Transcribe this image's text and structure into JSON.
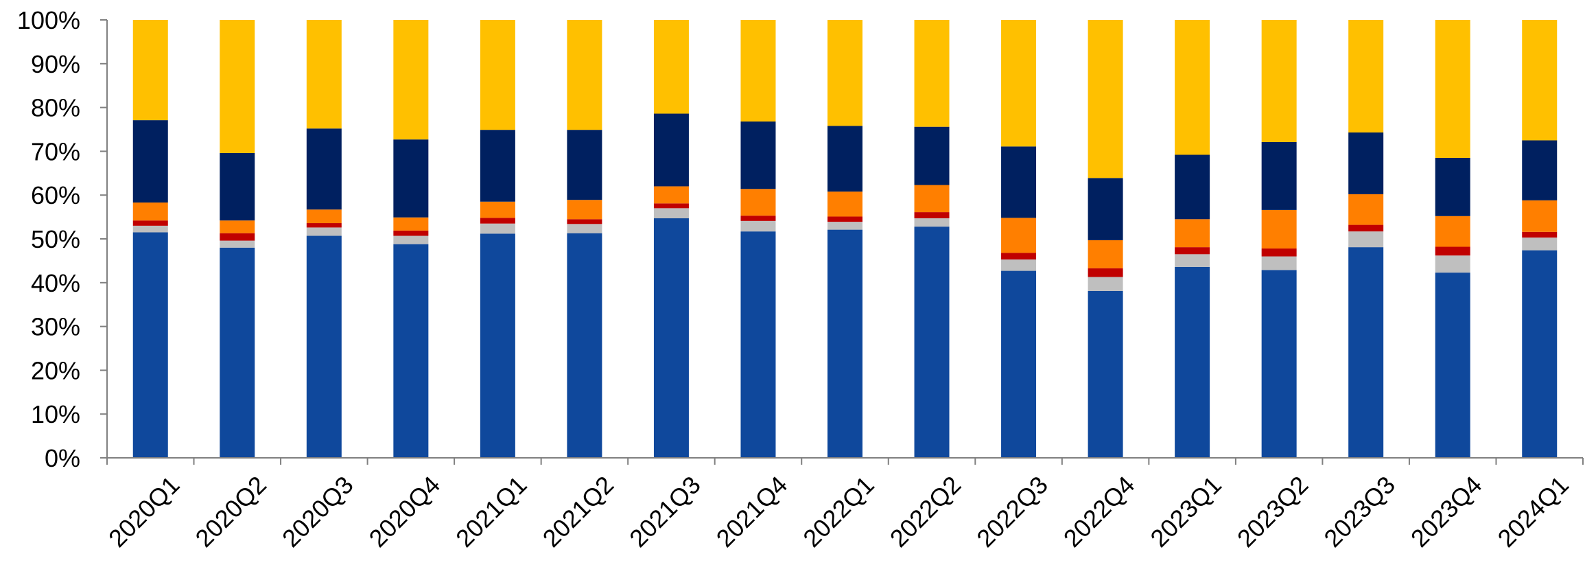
{
  "chart_data": {
    "type": "bar",
    "stacked": true,
    "percent": true,
    "title": "",
    "xlabel": "",
    "ylabel": "",
    "ylim": [
      0,
      100
    ],
    "yticks": [
      "0%",
      "10%",
      "20%",
      "30%",
      "40%",
      "50%",
      "60%",
      "70%",
      "80%",
      "90%",
      "100%"
    ],
    "grid": false,
    "legend": "none",
    "categories": [
      "2020Q1",
      "2020Q2",
      "2020Q3",
      "2020Q4",
      "2021Q1",
      "2021Q2",
      "2021Q3",
      "2021Q4",
      "2022Q1",
      "2022Q2",
      "2022Q3",
      "2022Q4",
      "2023Q1",
      "2023Q2",
      "2023Q3",
      "2023Q4",
      "2024Q1"
    ],
    "series": [
      {
        "color": "#0F489C",
        "values": [
          51.5,
          48.0,
          50.7,
          48.8,
          51.2,
          51.3,
          54.7,
          51.7,
          52.1,
          52.8,
          42.7,
          38.1,
          43.6,
          42.9,
          48.1,
          42.3,
          47.4
        ]
      },
      {
        "color": "#BFBFBF",
        "values": [
          1.5,
          1.6,
          1.9,
          1.9,
          2.3,
          2.1,
          2.3,
          2.4,
          1.8,
          1.9,
          2.6,
          3.2,
          2.9,
          3.1,
          3.6,
          3.9,
          2.9
        ]
      },
      {
        "color": "#C00000",
        "values": [
          1.2,
          1.7,
          1.0,
          1.2,
          1.3,
          1.1,
          1.1,
          1.2,
          1.2,
          1.4,
          1.5,
          2.0,
          1.6,
          1.8,
          1.5,
          2.0,
          1.3
        ]
      },
      {
        "color": "#FF7F00",
        "values": [
          4.1,
          2.9,
          3.1,
          3.0,
          3.7,
          4.4,
          3.9,
          6.1,
          5.7,
          6.2,
          8.0,
          6.4,
          6.4,
          8.8,
          7.0,
          7.0,
          7.2
        ]
      },
      {
        "color": "#002060",
        "values": [
          18.8,
          15.4,
          18.5,
          17.8,
          16.4,
          16.0,
          16.6,
          15.4,
          15.0,
          13.3,
          16.3,
          14.2,
          14.7,
          15.5,
          14.1,
          13.3,
          13.7
        ]
      },
      {
        "color": "#FFC000",
        "values": [
          22.9,
          30.4,
          24.8,
          27.3,
          25.1,
          25.1,
          21.4,
          23.2,
          24.2,
          24.4,
          28.9,
          36.1,
          30.8,
          27.9,
          25.7,
          31.5,
          27.5
        ]
      }
    ]
  }
}
